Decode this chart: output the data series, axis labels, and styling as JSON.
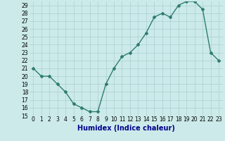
{
  "x": [
    0,
    1,
    2,
    3,
    4,
    5,
    6,
    7,
    8,
    9,
    10,
    11,
    12,
    13,
    14,
    15,
    16,
    17,
    18,
    19,
    20,
    21,
    22,
    23
  ],
  "y": [
    21,
    20,
    20,
    19,
    18,
    16.5,
    16,
    15.5,
    15.5,
    19,
    21,
    22.5,
    23,
    24,
    25.5,
    27.5,
    28,
    27.5,
    29,
    29.5,
    29.5,
    28.5,
    23,
    22
  ],
  "xlabel": "Humidex (Indice chaleur)",
  "ylim": [
    15,
    29.5
  ],
  "xlim": [
    -0.5,
    23.5
  ],
  "yticks": [
    15,
    16,
    17,
    18,
    19,
    20,
    21,
    22,
    23,
    24,
    25,
    26,
    27,
    28,
    29
  ],
  "xticks": [
    0,
    1,
    2,
    3,
    4,
    5,
    6,
    7,
    8,
    9,
    10,
    11,
    12,
    13,
    14,
    15,
    16,
    17,
    18,
    19,
    20,
    21,
    22,
    23
  ],
  "xtick_labels": [
    "0",
    "1",
    "2",
    "3",
    "4",
    "5",
    "6",
    "7",
    "8",
    "9",
    "10",
    "11",
    "12",
    "13",
    "14",
    "15",
    "16",
    "17",
    "18",
    "19",
    "20",
    "21",
    "22",
    "23"
  ],
  "line_color": "#2e7d6e",
  "marker": "D",
  "marker_size": 2,
  "bg_color": "#cceaea",
  "grid_color": "#aacfcf",
  "line_width": 1.0,
  "tick_fontsize": 5.5,
  "xlabel_fontsize": 7,
  "xlabel_color": "#00008b"
}
